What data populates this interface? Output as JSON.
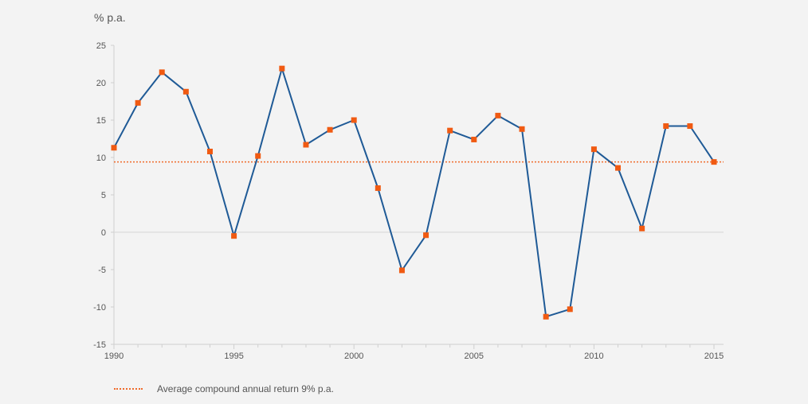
{
  "chart_data": {
    "type": "line",
    "ylabel": "% p.a.",
    "ylim": [
      -15,
      25
    ],
    "y_ticks": [
      "25",
      "20",
      "15",
      "10",
      "5",
      "0",
      "-5",
      "-10",
      "-15"
    ],
    "xlim": [
      1990,
      2015
    ],
    "x_tick_labels": [
      "1990",
      "1995",
      "2000",
      "2005",
      "2010",
      "2015"
    ],
    "series": [
      {
        "x": [
          1990,
          1991,
          1992,
          1993,
          1994,
          1995,
          1996,
          1997,
          1998,
          1999,
          2000,
          2001,
          2002,
          2003,
          2004,
          2005,
          2006,
          2007,
          2008,
          2009,
          2010,
          2011,
          2012,
          2013,
          2014,
          2015
        ],
        "values": [
          11.3,
          17.3,
          21.4,
          18.8,
          10.8,
          -0.5,
          10.2,
          21.9,
          11.7,
          13.7,
          15.0,
          5.9,
          -5.1,
          -0.4,
          13.6,
          12.4,
          15.6,
          13.8,
          -11.3,
          -10.3,
          11.1,
          8.6,
          0.5,
          14.2,
          14.2,
          9.4
        ],
        "color": "#1f5a96",
        "marker_color": "#f05a12"
      }
    ],
    "reference_line": {
      "value": 9.4,
      "label": "Average compound annual return 9% p.a.",
      "color": "#f06a2a",
      "style": "dotted"
    },
    "grid": false,
    "legend_position": "bottom-left"
  }
}
